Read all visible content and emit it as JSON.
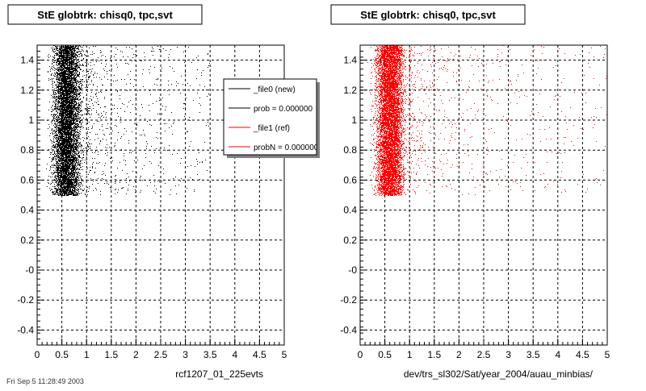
{
  "footer": {
    "date_text": "Fri Sep  5 11:28:49 2003"
  },
  "legend": {
    "entries": [
      {
        "label": "_file0 (new)",
        "color": "#000000"
      },
      {
        "label": "prob = 0.000000",
        "color": "#000000"
      },
      {
        "label": "_file1 (ref)",
        "color": "#ff0000"
      },
      {
        "label": "probN = 0.000000",
        "color": "#ff0000"
      }
    ]
  },
  "chart_data": [
    {
      "type": "scatter",
      "title": "StE globtrk: chisq0, tpc,svt",
      "xlabel": "rcf1207_01_225evts",
      "ylabel": "",
      "xlim": [
        0,
        5
      ],
      "ylim": [
        -0.5,
        1.5
      ],
      "x_ticks": [
        "0",
        "0.5",
        "1",
        "1.5",
        "2",
        "2.5",
        "3",
        "3.5",
        "4",
        "4.5",
        "5"
      ],
      "y_ticks": [
        "-0.4",
        "-0.2",
        "-0",
        "0.2",
        "0.4",
        "0.6",
        "0.8",
        "1",
        "1.2",
        "1.4"
      ],
      "grid": true,
      "legend_position": "top-right",
      "series": [
        {
          "color": "#000000",
          "y_range": [
            0.5,
            1.5
          ],
          "x_peak": 0.6,
          "x_spread": 0.25,
          "x_tail_max": 3.5,
          "approx_points": 9000
        }
      ]
    },
    {
      "type": "scatter",
      "title": "StE globtrk: chisq0, tpc,svt",
      "xlabel": "dev/trs_sl302/Sat/year_2004/auau_minbias/",
      "ylabel": "",
      "xlim": [
        0,
        5
      ],
      "ylim": [
        -0.5,
        1.5
      ],
      "x_ticks": [
        "0",
        "0.5",
        "1",
        "1.5",
        "2",
        "2.5",
        "3",
        "3.5",
        "4",
        "4.5",
        "5"
      ],
      "y_ticks": [
        "-0.4",
        "-0.2",
        "-0",
        "0.2",
        "0.4",
        "0.6",
        "0.8",
        "1",
        "1.2",
        "1.4"
      ],
      "grid": true,
      "series": [
        {
          "color": "#ff0000",
          "y_range": [
            0.5,
            1.5
          ],
          "x_peak": 0.6,
          "x_spread": 0.25,
          "x_tail_max": 5.0,
          "approx_points": 9000
        }
      ]
    }
  ]
}
